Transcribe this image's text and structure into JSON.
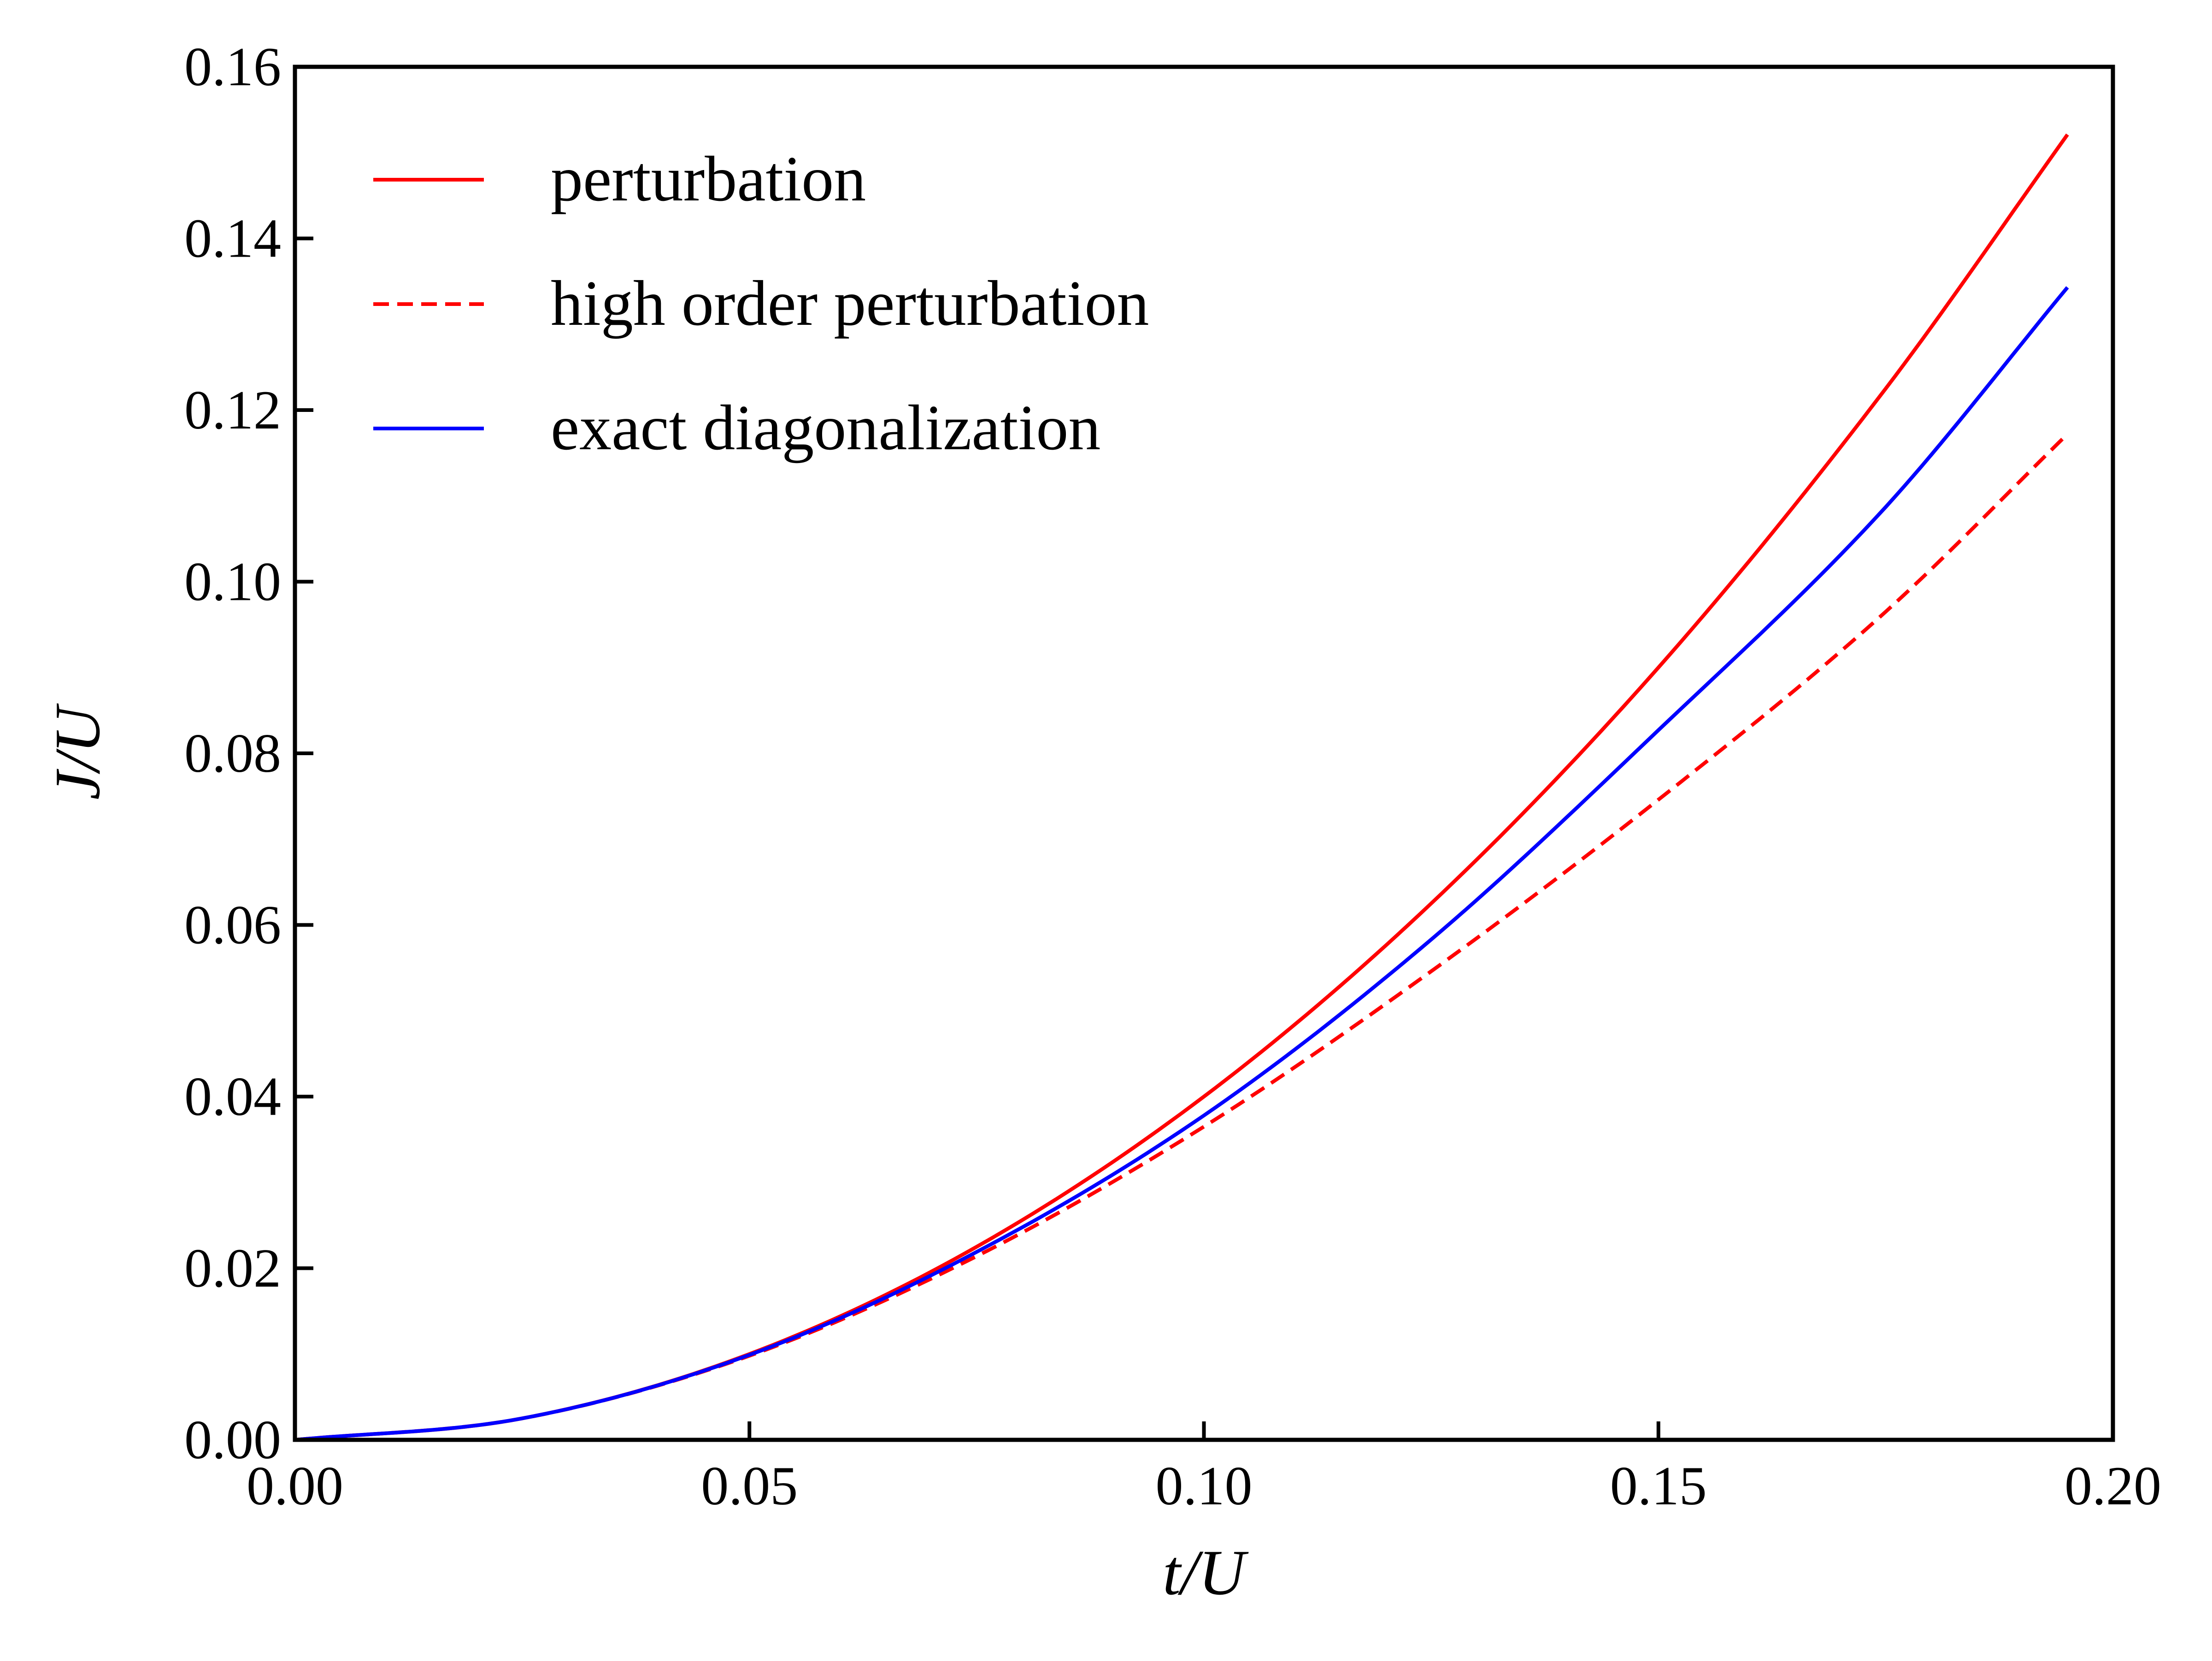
{
  "chart_data": {
    "type": "line",
    "title": "",
    "xlabel": "t/U",
    "ylabel": "J/U",
    "xlim": [
      0.0,
      0.2
    ],
    "ylim": [
      0.0,
      0.16
    ],
    "xticks": [
      "0.00",
      "0.05",
      "0.10",
      "0.15",
      "0.20"
    ],
    "yticks": [
      "0.00",
      "0.02",
      "0.04",
      "0.06",
      "0.08",
      "0.10",
      "0.12",
      "0.14",
      "0.16"
    ],
    "grid": false,
    "legend_position": "top-left",
    "series": [
      {
        "name": "perturbation",
        "color": "#ff0000",
        "dash": "solid",
        "x": [
          0.0,
          0.025,
          0.05,
          0.075,
          0.1,
          0.125,
          0.15,
          0.175,
          0.195
        ],
        "y": [
          0.0,
          0.0025,
          0.01,
          0.0225,
          0.04,
          0.0625,
          0.09,
          0.1225,
          0.1521
        ]
      },
      {
        "name": "high order perturbation",
        "color": "#ff0000",
        "dash": "dashed",
        "x": [
          0.0,
          0.025,
          0.05,
          0.075,
          0.1,
          0.125,
          0.15,
          0.175,
          0.195
        ],
        "y": [
          0.0,
          0.0025,
          0.0098,
          0.0214,
          0.0365,
          0.0546,
          0.0746,
          0.0965,
          0.1172
        ]
      },
      {
        "name": "exact diagonalization",
        "color": "#0000ff",
        "dash": "solid",
        "x": [
          0.0,
          0.025,
          0.05,
          0.075,
          0.1,
          0.125,
          0.15,
          0.175,
          0.195
        ],
        "y": [
          0.0,
          0.0025,
          0.0099,
          0.0219,
          0.0378,
          0.0583,
          0.0827,
          0.1087,
          0.1343
        ]
      }
    ]
  }
}
